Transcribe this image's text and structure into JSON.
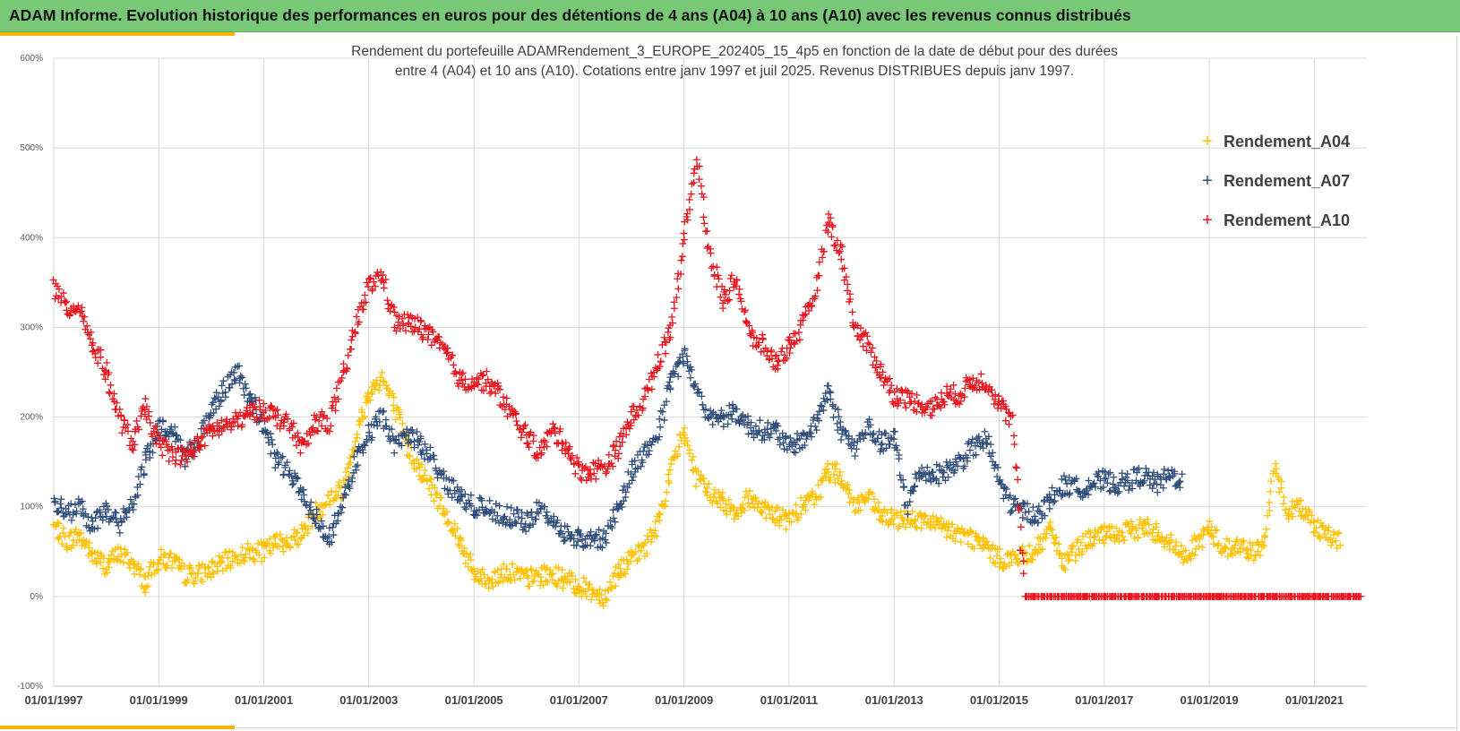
{
  "header": {
    "title": "ADAM Informe. Evolution historique des performances en euros pour des détentions de 4 ans (A04) à 10 ans (A10) avec les revenus connus distribués"
  },
  "colors": {
    "header_bg": "#78c878",
    "accent": "#f4b400",
    "A04": "#ffc000",
    "A07": "#2f4d7a",
    "A10": "#e8141c",
    "grid": "#d9d9d9"
  },
  "chart_data": {
    "type": "scatter",
    "title_line1": "Rendement du portefeuille ADAMRendement_3_EUROPE_202405_15_4p5  en fonction de la date de début pour des durées",
    "title_line2": "entre 4 (A04) et 10 ans (A10). Cotations  entre janv 1997 et juil 2025. Revenus DISTRIBUES depuis janv 1997.",
    "marker": "+",
    "x_axis": {
      "type": "date",
      "range": [
        "1997-01-01",
        "2022-01-01"
      ],
      "tick_labels": [
        "01/01/1997",
        "01/01/1999",
        "01/01/2001",
        "01/01/2003",
        "01/01/2005",
        "01/01/2007",
        "01/01/2009",
        "01/01/2011",
        "01/01/2013",
        "01/01/2015",
        "01/01/2017",
        "01/01/2019",
        "01/01/2021"
      ]
    },
    "y_axis": {
      "range": [
        -100,
        600
      ],
      "unit": "%",
      "tick_labels": [
        "-100%",
        "0%",
        "100%",
        "200%",
        "300%",
        "400%",
        "500%",
        "600%"
      ]
    },
    "grid": true,
    "legend_position": "right",
    "series": [
      {
        "name": "Rendement_A04",
        "points": [
          [
            "1997-01-01",
            78
          ],
          [
            "1997-04-01",
            62
          ],
          [
            "1997-07-01",
            68
          ],
          [
            "1997-10-01",
            45
          ],
          [
            "1998-01-01",
            35
          ],
          [
            "1998-04-01",
            48
          ],
          [
            "1998-07-01",
            38
          ],
          [
            "1998-10-01",
            15
          ],
          [
            "1999-01-01",
            42
          ],
          [
            "1999-04-01",
            40
          ],
          [
            "1999-07-01",
            25
          ],
          [
            "1999-10-01",
            25
          ],
          [
            "2000-01-01",
            30
          ],
          [
            "2000-04-01",
            38
          ],
          [
            "2000-07-01",
            45
          ],
          [
            "2000-10-01",
            50
          ],
          [
            "2001-01-01",
            50
          ],
          [
            "2001-04-01",
            60
          ],
          [
            "2001-07-01",
            62
          ],
          [
            "2001-10-01",
            72
          ],
          [
            "2002-01-01",
            95
          ],
          [
            "2002-04-01",
            110
          ],
          [
            "2002-07-01",
            120
          ],
          [
            "2002-10-01",
            175
          ],
          [
            "2003-01-01",
            225
          ],
          [
            "2003-04-01",
            245
          ],
          [
            "2003-07-01",
            210
          ],
          [
            "2003-10-01",
            165
          ],
          [
            "2004-01-01",
            140
          ],
          [
            "2004-04-01",
            115
          ],
          [
            "2004-07-01",
            90
          ],
          [
            "2004-10-01",
            60
          ],
          [
            "2005-01-01",
            25
          ],
          [
            "2005-04-01",
            18
          ],
          [
            "2005-07-01",
            25
          ],
          [
            "2005-10-01",
            28
          ],
          [
            "2006-01-01",
            20
          ],
          [
            "2006-04-01",
            22
          ],
          [
            "2006-07-01",
            25
          ],
          [
            "2006-10-01",
            18
          ],
          [
            "2007-01-01",
            12
          ],
          [
            "2007-04-01",
            6
          ],
          [
            "2007-07-01",
            0
          ],
          [
            "2007-10-01",
            30
          ],
          [
            "2008-01-01",
            40
          ],
          [
            "2008-04-01",
            55
          ],
          [
            "2008-07-01",
            80
          ],
          [
            "2008-10-01",
            140
          ],
          [
            "2009-01-01",
            185
          ],
          [
            "2009-04-01",
            130
          ],
          [
            "2009-07-01",
            115
          ],
          [
            "2009-10-01",
            105
          ],
          [
            "2010-01-01",
            95
          ],
          [
            "2010-04-01",
            110
          ],
          [
            "2010-07-01",
            100
          ],
          [
            "2010-10-01",
            90
          ],
          [
            "2011-01-01",
            85
          ],
          [
            "2011-04-01",
            100
          ],
          [
            "2011-07-01",
            110
          ],
          [
            "2011-10-01",
            140
          ],
          [
            "2012-01-01",
            135
          ],
          [
            "2012-04-01",
            100
          ],
          [
            "2012-07-01",
            110
          ],
          [
            "2012-10-01",
            90
          ],
          [
            "2013-01-01",
            85
          ],
          [
            "2013-04-01",
            88
          ],
          [
            "2013-07-01",
            85
          ],
          [
            "2013-10-01",
            80
          ],
          [
            "2014-01-01",
            75
          ],
          [
            "2014-04-01",
            70
          ],
          [
            "2014-07-01",
            65
          ],
          [
            "2014-10-01",
            55
          ],
          [
            "2015-01-01",
            42
          ],
          [
            "2015-04-01",
            42
          ],
          [
            "2015-07-01",
            45
          ],
          [
            "2015-10-01",
            55
          ],
          [
            "2016-01-01",
            75
          ],
          [
            "2016-04-01",
            35
          ],
          [
            "2016-07-01",
            55
          ],
          [
            "2016-10-01",
            65
          ],
          [
            "2017-01-01",
            68
          ],
          [
            "2017-04-01",
            70
          ],
          [
            "2017-07-01",
            72
          ],
          [
            "2017-10-01",
            78
          ],
          [
            "2018-01-01",
            72
          ],
          [
            "2018-04-01",
            60
          ],
          [
            "2018-07-01",
            45
          ],
          [
            "2018-10-01",
            58
          ],
          [
            "2019-01-01",
            75
          ],
          [
            "2019-04-01",
            55
          ],
          [
            "2019-07-01",
            55
          ],
          [
            "2019-10-01",
            52
          ],
          [
            "2020-01-01",
            50
          ],
          [
            "2020-04-01",
            140
          ],
          [
            "2020-07-01",
            95
          ],
          [
            "2020-10-01",
            100
          ],
          [
            "2021-01-01",
            80
          ],
          [
            "2021-04-01",
            70
          ],
          [
            "2021-07-01",
            60
          ]
        ]
      },
      {
        "name": "Rendement_A07",
        "points": [
          [
            "1997-01-01",
            105
          ],
          [
            "1997-04-01",
            92
          ],
          [
            "1997-07-01",
            100
          ],
          [
            "1997-10-01",
            78
          ],
          [
            "1998-01-01",
            98
          ],
          [
            "1998-04-01",
            80
          ],
          [
            "1998-07-01",
            100
          ],
          [
            "1998-10-01",
            150
          ],
          [
            "1999-01-01",
            185
          ],
          [
            "1999-04-01",
            190
          ],
          [
            "1999-07-01",
            155
          ],
          [
            "1999-10-01",
            175
          ],
          [
            "2000-01-01",
            205
          ],
          [
            "2000-04-01",
            230
          ],
          [
            "2000-07-01",
            250
          ],
          [
            "2000-10-01",
            220
          ],
          [
            "2001-01-01",
            190
          ],
          [
            "2001-04-01",
            150
          ],
          [
            "2001-07-01",
            140
          ],
          [
            "2001-10-01",
            110
          ],
          [
            "2002-01-01",
            90
          ],
          [
            "2002-04-01",
            65
          ],
          [
            "2002-07-01",
            100
          ],
          [
            "2002-10-01",
            150
          ],
          [
            "2003-01-01",
            180
          ],
          [
            "2003-04-01",
            200
          ],
          [
            "2003-07-01",
            170
          ],
          [
            "2003-10-01",
            180
          ],
          [
            "2004-01-01",
            170
          ],
          [
            "2004-04-01",
            150
          ],
          [
            "2004-07-01",
            125
          ],
          [
            "2004-10-01",
            110
          ],
          [
            "2005-01-01",
            100
          ],
          [
            "2005-04-01",
            98
          ],
          [
            "2005-07-01",
            92
          ],
          [
            "2005-10-01",
            88
          ],
          [
            "2006-01-01",
            82
          ],
          [
            "2006-04-01",
            98
          ],
          [
            "2006-07-01",
            85
          ],
          [
            "2006-10-01",
            70
          ],
          [
            "2007-01-01",
            65
          ],
          [
            "2007-04-01",
            62
          ],
          [
            "2007-07-01",
            65
          ],
          [
            "2007-10-01",
            100
          ],
          [
            "2008-01-01",
            140
          ],
          [
            "2008-04-01",
            160
          ],
          [
            "2008-07-01",
            180
          ],
          [
            "2008-10-01",
            240
          ],
          [
            "2009-01-01",
            270
          ],
          [
            "2009-04-01",
            230
          ],
          [
            "2009-07-01",
            200
          ],
          [
            "2009-10-01",
            200
          ],
          [
            "2010-01-01",
            205
          ],
          [
            "2010-04-01",
            190
          ],
          [
            "2010-07-01",
            185
          ],
          [
            "2010-10-01",
            185
          ],
          [
            "2011-01-01",
            165
          ],
          [
            "2011-04-01",
            175
          ],
          [
            "2011-07-01",
            190
          ],
          [
            "2011-10-01",
            230
          ],
          [
            "2012-01-01",
            185
          ],
          [
            "2012-04-01",
            165
          ],
          [
            "2012-07-01",
            190
          ],
          [
            "2012-10-01",
            170
          ],
          [
            "2013-01-01",
            175
          ],
          [
            "2013-04-01",
            100
          ],
          [
            "2013-07-01",
            140
          ],
          [
            "2013-10-01",
            135
          ],
          [
            "2014-01-01",
            140
          ],
          [
            "2014-04-01",
            150
          ],
          [
            "2014-07-01",
            165
          ],
          [
            "2014-10-01",
            175
          ],
          [
            "2015-01-01",
            130
          ],
          [
            "2015-04-01",
            100
          ],
          [
            "2015-07-01",
            95
          ],
          [
            "2015-10-01",
            90
          ],
          [
            "2016-01-01",
            110
          ],
          [
            "2016-04-01",
            125
          ],
          [
            "2016-07-01",
            120
          ],
          [
            "2016-10-01",
            125
          ],
          [
            "2017-01-01",
            130
          ],
          [
            "2017-04-01",
            125
          ],
          [
            "2017-07-01",
            130
          ],
          [
            "2017-10-01",
            135
          ],
          [
            "2018-01-01",
            125
          ],
          [
            "2018-04-01",
            135
          ],
          [
            "2018-07-01",
            130
          ]
        ]
      },
      {
        "name": "Rendement_A10",
        "points": [
          [
            "1997-01-01",
            345
          ],
          [
            "1997-04-01",
            320
          ],
          [
            "1997-07-01",
            325
          ],
          [
            "1997-10-01",
            280
          ],
          [
            "1998-01-01",
            250
          ],
          [
            "1998-04-01",
            200
          ],
          [
            "1998-07-01",
            170
          ],
          [
            "1998-10-01",
            210
          ],
          [
            "1999-01-01",
            170
          ],
          [
            "1999-04-01",
            160
          ],
          [
            "1999-07-01",
            155
          ],
          [
            "1999-10-01",
            170
          ],
          [
            "2000-01-01",
            185
          ],
          [
            "2000-04-01",
            190
          ],
          [
            "2000-07-01",
            195
          ],
          [
            "2000-10-01",
            205
          ],
          [
            "2001-01-01",
            210
          ],
          [
            "2001-04-01",
            200
          ],
          [
            "2001-07-01",
            190
          ],
          [
            "2001-10-01",
            165
          ],
          [
            "2002-01-01",
            195
          ],
          [
            "2002-04-01",
            195
          ],
          [
            "2002-07-01",
            240
          ],
          [
            "2002-10-01",
            300
          ],
          [
            "2003-01-01",
            345
          ],
          [
            "2003-04-01",
            360
          ],
          [
            "2003-07-01",
            305
          ],
          [
            "2003-10-01",
            305
          ],
          [
            "2004-01-01",
            300
          ],
          [
            "2004-04-01",
            285
          ],
          [
            "2004-07-01",
            270
          ],
          [
            "2004-10-01",
            240
          ],
          [
            "2005-01-01",
            240
          ],
          [
            "2005-04-01",
            240
          ],
          [
            "2005-07-01",
            225
          ],
          [
            "2005-10-01",
            200
          ],
          [
            "2006-01-01",
            180
          ],
          [
            "2006-04-01",
            160
          ],
          [
            "2006-07-01",
            185
          ],
          [
            "2006-10-01",
            170
          ],
          [
            "2007-01-01",
            140
          ],
          [
            "2007-04-01",
            140
          ],
          [
            "2007-07-01",
            145
          ],
          [
            "2007-10-01",
            165
          ],
          [
            "2008-01-01",
            200
          ],
          [
            "2008-04-01",
            220
          ],
          [
            "2008-07-01",
            260
          ],
          [
            "2008-10-01",
            300
          ],
          [
            "2009-01-01",
            400
          ],
          [
            "2009-04-01",
            490
          ],
          [
            "2009-07-01",
            380
          ],
          [
            "2009-10-01",
            330
          ],
          [
            "2010-01-01",
            355
          ],
          [
            "2010-04-01",
            290
          ],
          [
            "2010-07-01",
            280
          ],
          [
            "2010-10-01",
            260
          ],
          [
            "2011-01-01",
            280
          ],
          [
            "2011-04-01",
            300
          ],
          [
            "2011-07-01",
            340
          ],
          [
            "2011-10-01",
            420
          ],
          [
            "2012-01-01",
            380
          ],
          [
            "2012-04-01",
            300
          ],
          [
            "2012-07-01",
            280
          ],
          [
            "2012-10-01",
            250
          ],
          [
            "2013-01-01",
            225
          ],
          [
            "2013-04-01",
            220
          ],
          [
            "2013-07-01",
            215
          ],
          [
            "2013-10-01",
            210
          ],
          [
            "2014-01-01",
            225
          ],
          [
            "2014-04-01",
            225
          ],
          [
            "2014-07-01",
            240
          ],
          [
            "2014-10-01",
            240
          ],
          [
            "2015-01-01",
            215
          ],
          [
            "2015-04-01",
            195
          ],
          [
            "2015-07-01",
            0
          ],
          [
            "2016-01-01",
            0
          ],
          [
            "2017-01-01",
            0
          ],
          [
            "2018-01-01",
            0
          ],
          [
            "2019-01-01",
            0
          ],
          [
            "2020-01-01",
            0
          ],
          [
            "2021-01-01",
            0
          ],
          [
            "2021-12-01",
            0
          ]
        ]
      }
    ]
  }
}
